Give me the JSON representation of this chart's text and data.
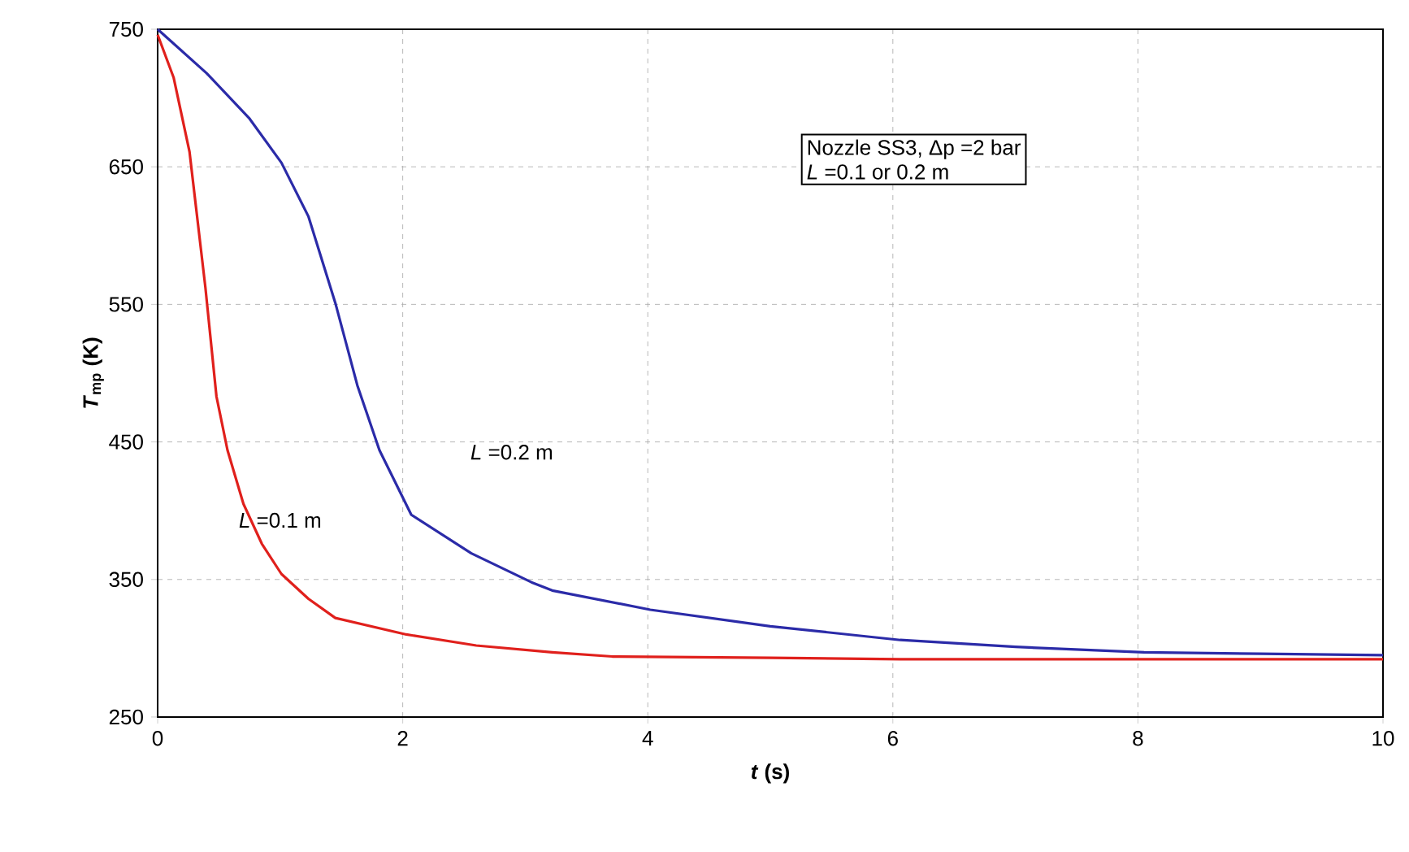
{
  "chart_data": {
    "type": "line",
    "xlabel": "*t* (s)",
    "ylabel": "*T*$_{mp}$ (K)",
    "xlim": [
      0,
      10
    ],
    "ylim": [
      250,
      750
    ],
    "xticks": [
      0,
      2,
      4,
      6,
      8,
      10
    ],
    "yticks": [
      250,
      350,
      450,
      550,
      650,
      750
    ],
    "grid": true,
    "marker": "none",
    "line_style": "solid",
    "series": [
      {
        "color": "#2b2ba8",
        "x": [
          0,
          0.4,
          0.75,
          1.01,
          1.23,
          1.45,
          1.63,
          1.81,
          2.07,
          2.56,
          3.05,
          3.22,
          4.02,
          5.0,
          6.06,
          7.0,
          8.05,
          9.0,
          10.0
        ],
        "values": [
          750,
          718,
          685,
          653,
          614,
          551,
          491,
          444,
          397,
          369,
          348,
          342,
          328,
          316,
          306,
          301,
          297,
          296,
          295
        ]
      },
      {
        "color": "#e0201c",
        "x": [
          0,
          0.13,
          0.26,
          0.39,
          0.48,
          0.57,
          0.7,
          0.85,
          1.01,
          1.23,
          1.45,
          2.03,
          2.6,
          3.22,
          3.71,
          5.0,
          6.06,
          8.0,
          10.0
        ],
        "values": [
          746,
          715,
          661,
          562,
          483,
          444,
          405,
          376,
          354,
          336,
          322,
          310,
          302,
          297,
          294,
          293,
          292,
          292,
          292
        ]
      }
    ],
    "annotations": [
      "Nozzle SS3, Δp =2 bar",
      "*L* =0.1 or 0.2 m",
      "*L* =0.2 m",
      "*L* =0.1 m"
    ]
  }
}
